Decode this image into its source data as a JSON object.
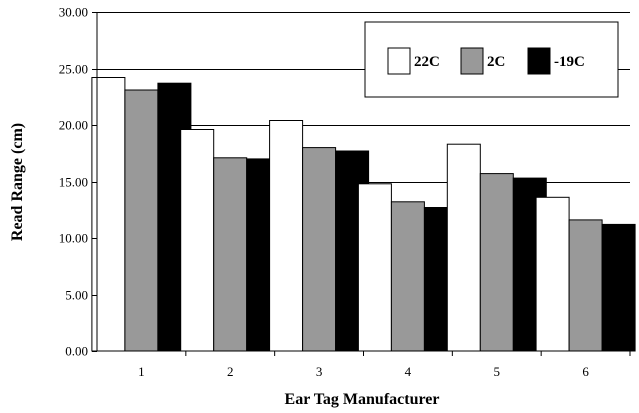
{
  "chart_data": {
    "type": "bar",
    "title": "",
    "xlabel": "Ear Tag Manufacturer",
    "ylabel": "Read Range (cm)",
    "categories": [
      "1",
      "2",
      "3",
      "4",
      "5",
      "6"
    ],
    "ylim": [
      0,
      30
    ],
    "yticks": [
      "0.00",
      "5.00",
      "10.00",
      "15.00",
      "20.00",
      "25.00",
      "30.00"
    ],
    "grid": "horizontal",
    "legend_position": "top-right",
    "series": [
      {
        "name": "22C",
        "color": "#ffffff",
        "values": [
          24.2,
          19.6,
          20.4,
          14.8,
          18.3,
          13.6
        ]
      },
      {
        "name": "2C",
        "color": "#999999",
        "values": [
          23.1,
          17.1,
          18.0,
          13.2,
          15.7,
          11.6
        ]
      },
      {
        "name": "-19C",
        "color": "#000000",
        "values": [
          23.7,
          17.0,
          17.7,
          12.7,
          15.3,
          11.2
        ]
      }
    ]
  }
}
